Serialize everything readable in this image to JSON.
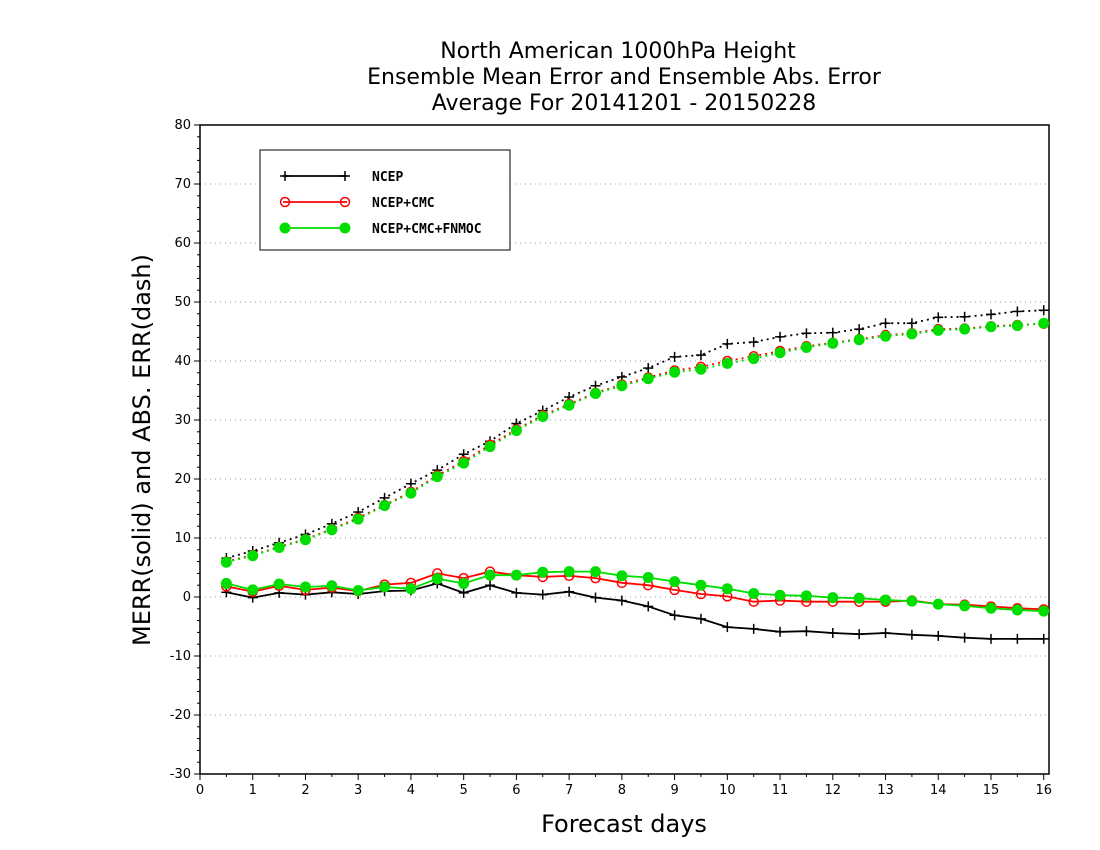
{
  "chart_data": {
    "type": "line",
    "title_lines": [
      "North American 1000hPa Height",
      "Ensemble Mean Error and Ensemble Abs. Error",
      "Average For 20141201 - 20150228"
    ],
    "xlabel": "Forecast days",
    "ylabel": "MERR(solid) and ABS. ERR(dash)",
    "xlim": [
      0,
      16.1
    ],
    "ylim": [
      -30,
      80
    ],
    "xticks": [
      0,
      1,
      2,
      3,
      4,
      5,
      6,
      7,
      8,
      9,
      10,
      11,
      12,
      13,
      14,
      15,
      16
    ],
    "yticks": [
      -30,
      -20,
      -10,
      0,
      10,
      20,
      30,
      40,
      50,
      60,
      70,
      80
    ],
    "grid": "horizontal dotted",
    "legend_position": "top-left",
    "x": [
      0.5,
      1.0,
      1.5,
      2.0,
      2.5,
      3.0,
      3.5,
      4.0,
      4.5,
      5.0,
      5.5,
      6.0,
      6.5,
      7.0,
      7.5,
      8.0,
      8.5,
      9.0,
      9.5,
      10.0,
      10.5,
      11.0,
      11.5,
      12.0,
      12.5,
      13.0,
      13.5,
      14.0,
      14.5,
      15.0,
      15.5,
      16.0
    ],
    "series": [
      {
        "name": "NCEP",
        "color": "#000000",
        "marker": "plus",
        "merr": [
          0.8,
          -0.1,
          0.7,
          0.4,
          0.8,
          0.5,
          1.0,
          1.1,
          2.3,
          0.7,
          2.0,
          0.7,
          0.4,
          0.9,
          -0.1,
          -0.6,
          -1.6,
          -3.1,
          -3.7,
          -5.1,
          -5.4,
          -5.9,
          -5.8,
          -6.1,
          -6.3,
          -6.1,
          -6.4,
          -6.6,
          -6.9,
          -7.1,
          -7.1,
          -7.1
        ],
        "abs_err": [
          6.6,
          7.8,
          9.2,
          10.6,
          12.4,
          14.4,
          16.8,
          19.2,
          21.5,
          24.2,
          26.4,
          29.4,
          31.6,
          33.9,
          35.8,
          37.3,
          38.8,
          40.7,
          41.0,
          42.9,
          43.2,
          44.1,
          44.7,
          44.8,
          45.4,
          46.4,
          46.4,
          47.4,
          47.5,
          47.9,
          48.4,
          48.6
        ]
      },
      {
        "name": "NCEP+CMC",
        "color": "#ff0000",
        "marker": "open-circle",
        "merr": [
          1.8,
          0.9,
          1.9,
          1.2,
          1.6,
          1.0,
          2.1,
          2.4,
          4.0,
          3.2,
          4.3,
          3.7,
          3.4,
          3.6,
          3.2,
          2.4,
          2.0,
          1.2,
          0.5,
          0.1,
          -0.8,
          -0.6,
          -0.8,
          -0.8,
          -0.8,
          -0.8,
          -0.6,
          -1.2,
          -1.3,
          -1.6,
          -1.9,
          -2.1
        ],
        "abs_err": [
          6.0,
          7.1,
          8.5,
          9.8,
          11.5,
          13.4,
          15.6,
          17.8,
          20.6,
          23.0,
          25.8,
          28.4,
          30.8,
          32.7,
          34.6,
          36.0,
          37.2,
          38.4,
          39.0,
          40.0,
          40.8,
          41.7,
          42.5,
          43.1,
          43.7,
          44.4,
          44.7,
          45.4,
          45.5,
          45.9,
          46.1,
          46.3
        ]
      },
      {
        "name": "NCEP+CMC+FNMOC",
        "color": "#00dd00",
        "marker": "filled-circle",
        "merr": [
          2.3,
          1.2,
          2.2,
          1.7,
          1.9,
          1.1,
          1.7,
          1.4,
          3.1,
          2.3,
          3.7,
          3.7,
          4.2,
          4.3,
          4.3,
          3.6,
          3.3,
          2.6,
          2.0,
          1.4,
          0.6,
          0.3,
          0.2,
          -0.1,
          -0.2,
          -0.5,
          -0.7,
          -1.2,
          -1.5,
          -1.9,
          -2.2,
          -2.4
        ],
        "abs_err": [
          5.9,
          7.0,
          8.4,
          9.7,
          11.4,
          13.2,
          15.5,
          17.6,
          20.4,
          22.7,
          25.5,
          28.2,
          30.6,
          32.5,
          34.5,
          35.8,
          37.0,
          38.1,
          38.6,
          39.6,
          40.4,
          41.4,
          42.3,
          43.0,
          43.6,
          44.2,
          44.6,
          45.2,
          45.4,
          45.8,
          46.0,
          46.4
        ]
      }
    ]
  }
}
